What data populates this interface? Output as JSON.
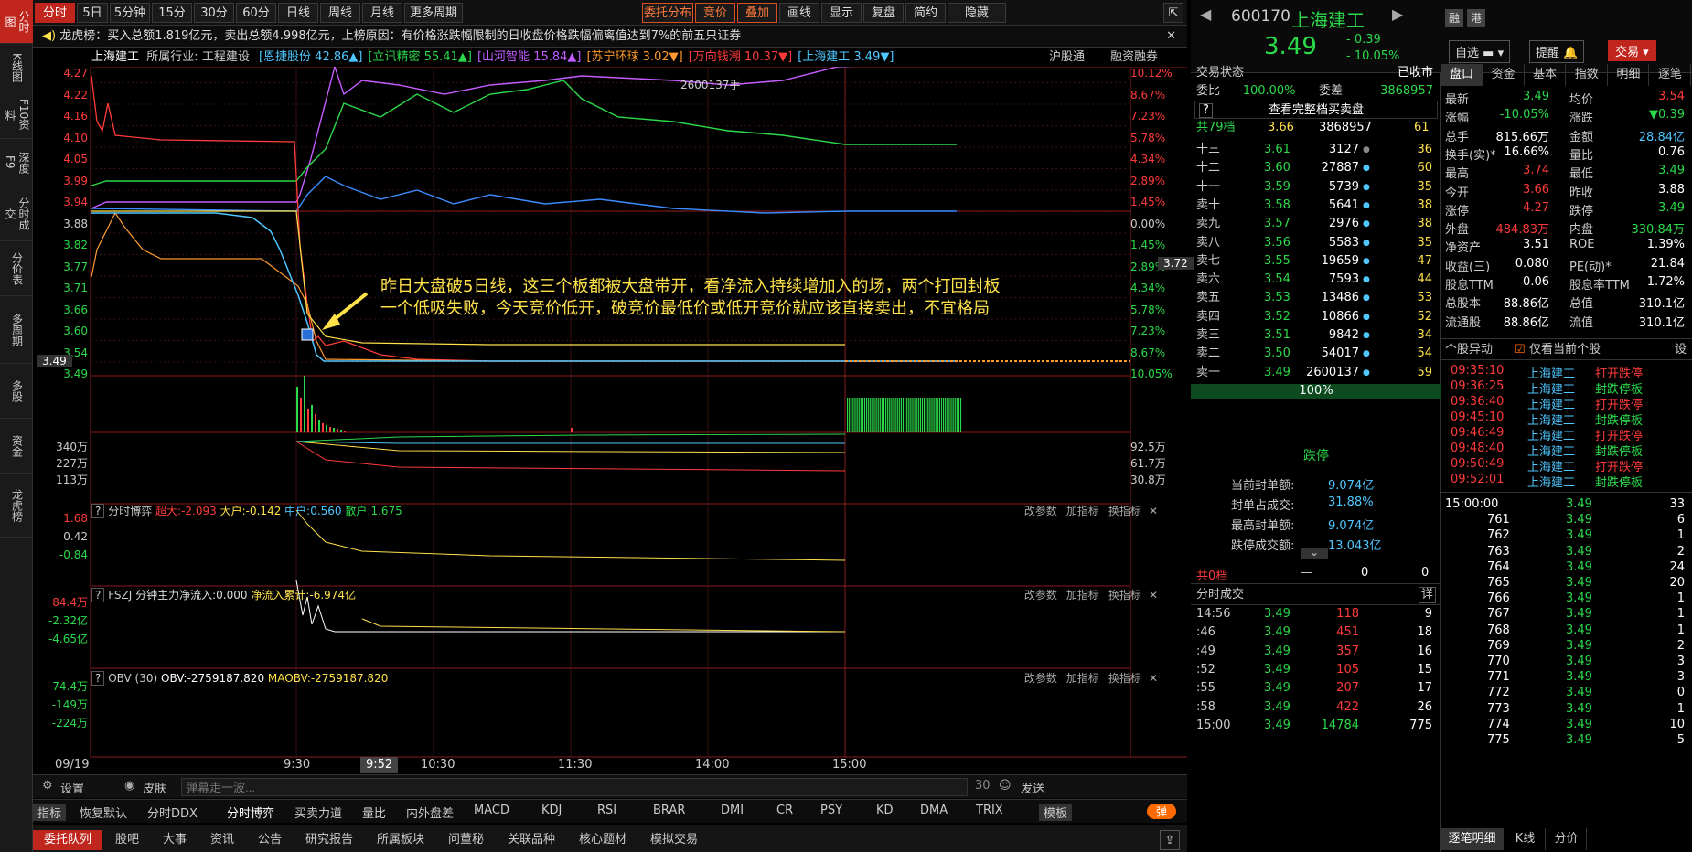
{
  "colors": {
    "up": "#ff3b3b",
    "down": "#2bd94a",
    "accent": "#c0261d",
    "highlight": "#ffe14a"
  },
  "leftbar": [
    {
      "label": "分时图",
      "active": true
    },
    {
      "label": "K线图"
    },
    {
      "label": "F10资料"
    },
    {
      "label": "深度F9"
    },
    {
      "label": "分时成交"
    },
    {
      "label": "分价表"
    },
    {
      "label": "多周期"
    },
    {
      "label": "多股"
    },
    {
      "label": "资金"
    },
    {
      "label": "龙虎榜"
    }
  ],
  "toolbar": {
    "periods": [
      "分时",
      "5日",
      "5分钟",
      "15分钟",
      "30分钟",
      "60分钟",
      "日线",
      "周线",
      "月线",
      "更多周期"
    ],
    "right": [
      "委托分布",
      "竞价",
      "叠加",
      "画线",
      "显示",
      "复盘",
      "简约",
      "隐藏"
    ]
  },
  "notice": "龙虎榜：买入总额1.819亿元，卖出总额4.998亿元，上榜原因：有价格涨跌幅限制的日收盘价格跌幅偏离值达到7%的前五只证券",
  "stockbar": {
    "name": "上海建工",
    "industry_label": "所属行业:",
    "industry": "工程建设",
    "peers": [
      {
        "text": "[恩捷股份 42.86▲]",
        "color": "#4fc7ff"
      },
      {
        "text": "[立讯精密 55.41▲]",
        "color": "#2bd94a"
      },
      {
        "text": "[山河智能 15.84▲]",
        "color": "#c45cff"
      },
      {
        "text": "[苏宁环球 3.02▼]",
        "color": "#ff9a2e"
      },
      {
        "text": "[万向钱潮 10.37▼]",
        "color": "#ff3b3b"
      },
      {
        "text": "[上海建工 3.49▼]",
        "color": "#4fc7ff"
      }
    ],
    "r1": "沪股通",
    "r2": "融资融券"
  },
  "price_axis": {
    "left": [
      "4.27",
      "4.22",
      "4.16",
      "4.10",
      "4.05",
      "3.99",
      "3.94",
      "3.88",
      "3.82",
      "3.77",
      "3.71",
      "3.66",
      "3.60",
      "3.54",
      "3.49"
    ],
    "right": [
      "10.12%",
      "8.67%",
      "7.23%",
      "5.78%",
      "4.34%",
      "2.89%",
      "1.45%",
      "0.00%",
      "1.45%",
      "2.89%",
      "4.34%",
      "5.78%",
      "7.23%",
      "8.67%",
      "10.05%"
    ],
    "cur_right": "3.72",
    "cur_left": "3.49",
    "max_note": "2600137手"
  },
  "annotation": {
    "line1": "昨日大盘破5日线，这三个板都被大盘带开，看净流入持续增加入的场，两个打回封板",
    "line2": "一个低吸失败，今天竞价低开，破竞价最低价或低开竞价就应该直接卖出，不宜格局"
  },
  "vol_axis": {
    "left": [
      "340万",
      "227万",
      "113万"
    ],
    "right": [
      "92.5万",
      "61.7万",
      "30.8万"
    ]
  },
  "indicator1": {
    "q": "?",
    "name": "分时博弈",
    "a": "超大:-2.093",
    "b": "大户:-0.142",
    "c": "中户:0.560",
    "d": "散户:1.675",
    "axis": [
      "1.68",
      "0.42",
      "-0.84"
    ]
  },
  "indicator2": {
    "q": "?",
    "name": "FSZJ",
    "a": "分钟主力净流入:0.000",
    "b": "净流入累计:-6.974亿",
    "axis": [
      "84.4万",
      "-2.32亿",
      "-4.65亿"
    ]
  },
  "indicator3": {
    "q": "?",
    "name": "OBV (30)",
    "a": "OBV:-2759187.820",
    "b": "MAOBV:-2759187.820",
    "axis": [
      "-74.4万",
      "-149万",
      "-224万"
    ]
  },
  "ind_btns": [
    "改参数",
    "加指标",
    "换指标"
  ],
  "timeaxis": {
    "date": "09/19",
    "ticks": [
      "9:30",
      "9:52",
      "10:30",
      "11:30",
      "14:00",
      "15:00"
    ]
  },
  "bottom1": {
    "settings": "设置",
    "skin": "皮肤",
    "danmu_placeholder": "弹幕走一波...",
    "count": "30",
    "send": "发送"
  },
  "bottom2": {
    "items": [
      "指标",
      "恢复默认",
      "分时DDX",
      "分时博弈",
      "买卖力道",
      "量比",
      "内外盘差",
      "MACD",
      "KDJ",
      "RSI",
      "BRAR",
      "DMI",
      "CR",
      "PSY",
      "KD",
      "DMA",
      "TRIX",
      "模板"
    ],
    "toggle": "弹"
  },
  "bottom3": [
    "委托队列",
    "股吧",
    "大事",
    "资讯",
    "公告",
    "研究报告",
    "所属板块",
    "问董秘",
    "关联品种",
    "核心题材",
    "模拟交易"
  ],
  "header": {
    "code": "600170",
    "name": "上海建工",
    "price": "3.49",
    "chg": "- 0.39",
    "pct": "- 10.05%",
    "badge1": "融",
    "badge2": "港",
    "btn_self": "自选",
    "btn_alert": "提醒",
    "btn_trade": "交易"
  },
  "ob": {
    "status_label": "交易状态",
    "status": "已收市",
    "wb_label": "委比",
    "wb": "-100.00%",
    "wc_label": "委差",
    "wc": "-3868957",
    "full_btn": "查看完整档买卖盘",
    "total": "共79档",
    "total_p": "3.66",
    "total_v": "3868957",
    "total_n": "61",
    "asks": [
      [
        "十三",
        "3.61",
        "3127",
        "36"
      ],
      [
        "十二",
        "3.60",
        "27887",
        "60"
      ],
      [
        "十一",
        "3.59",
        "5739",
        "35"
      ],
      [
        "卖十",
        "3.58",
        "5641",
        "38"
      ],
      [
        "卖九",
        "3.57",
        "2976",
        "38"
      ],
      [
        "卖八",
        "3.56",
        "5583",
        "35"
      ],
      [
        "卖七",
        "3.55",
        "19659",
        "47"
      ],
      [
        "卖六",
        "3.54",
        "7593",
        "44"
      ],
      [
        "卖五",
        "3.53",
        "13486",
        "53"
      ],
      [
        "卖四",
        "3.52",
        "10866",
        "52"
      ],
      [
        "卖三",
        "3.51",
        "9842",
        "34"
      ],
      [
        "卖二",
        "3.50",
        "54017",
        "54"
      ],
      [
        "卖一",
        "3.49",
        "2600137",
        "59"
      ]
    ],
    "pct": "100%",
    "limit_title": "跌停",
    "limit_rows": [
      [
        "当前封单额:",
        "9.074亿"
      ],
      [
        "封单占成交:",
        "31.88%"
      ],
      [
        "最高封单额:",
        "9.074亿"
      ],
      [
        "跌停成交额:",
        "13.043亿"
      ]
    ],
    "bid_total": "共0档",
    "bid_dash": "—",
    "bid_v": "0",
    "bid_n": "0",
    "trades_title": "分时成交",
    "trades_more": "详",
    "trades": [
      [
        "14:56",
        "3.49",
        "118",
        "9"
      ],
      [
        ":46",
        "3.49",
        "451",
        "18"
      ],
      [
        ":49",
        "3.49",
        "357",
        "16"
      ],
      [
        ":52",
        "3.49",
        "105",
        "15"
      ],
      [
        ":55",
        "3.49",
        "207",
        "17"
      ],
      [
        ":58",
        "3.49",
        "422",
        "26"
      ],
      [
        "15:00",
        "3.49",
        "14784",
        "775"
      ]
    ]
  },
  "rp": {
    "tabs": [
      "盘口",
      "资金",
      "基本",
      "指数",
      "明细",
      "逐笔"
    ],
    "stats": [
      [
        "最新",
        "3.49",
        "均价",
        "3.54"
      ],
      [
        "涨幅",
        "-10.05%",
        "涨跌",
        "▼0.39"
      ],
      [
        "总手",
        "815.66万",
        "金额",
        "28.84亿"
      ],
      [
        "换手(实)*",
        "16.66%",
        "量比",
        "0.76"
      ],
      [
        "最高",
        "3.74",
        "最低",
        "3.49"
      ],
      [
        "今开",
        "3.66",
        "昨收",
        "3.88"
      ],
      [
        "涨停",
        "4.27",
        "跌停",
        "3.49"
      ],
      [
        "外盘",
        "484.83万",
        "内盘",
        "330.84万"
      ],
      [
        "净资产",
        "3.51",
        "ROE",
        "1.39%"
      ],
      [
        "收益(三)",
        "0.080",
        "PE(动)*",
        "21.84"
      ],
      [
        "股息TTM",
        "0.06",
        "股息率TTM",
        "1.72%"
      ],
      [
        "总股本",
        "88.86亿",
        "总值",
        "310.1亿"
      ],
      [
        "流通股",
        "88.86亿",
        "流值",
        "310.1亿"
      ]
    ],
    "alerts_title": "个股异动",
    "alerts_check": "仅看当前个股",
    "alerts_btn": "设",
    "alerts": [
      [
        "09:35:10",
        "上海建工",
        "打开跌停"
      ],
      [
        "09:36:25",
        "上海建工",
        "封跌停板"
      ],
      [
        "09:36:40",
        "上海建工",
        "打开跌停"
      ],
      [
        "09:45:10",
        "上海建工",
        "封跌停板"
      ],
      [
        "09:46:49",
        "上海建工",
        "打开跌停"
      ],
      [
        "09:48:40",
        "上海建工",
        "封跌停板"
      ],
      [
        "09:50:49",
        "上海建工",
        "打开跌停"
      ],
      [
        "09:52:01",
        "上海建工",
        "封跌停板"
      ]
    ],
    "ticks": [
      [
        "15:00:00",
        "3.49",
        "33"
      ],
      [
        "761",
        "3.49",
        "6"
      ],
      [
        "762",
        "3.49",
        "1"
      ],
      [
        "763",
        "3.49",
        "2"
      ],
      [
        "764",
        "3.49",
        "24"
      ],
      [
        "765",
        "3.49",
        "20"
      ],
      [
        "766",
        "3.49",
        "1"
      ],
      [
        "767",
        "3.49",
        "1"
      ],
      [
        "768",
        "3.49",
        "1"
      ],
      [
        "769",
        "3.49",
        "2"
      ],
      [
        "770",
        "3.49",
        "3"
      ],
      [
        "771",
        "3.49",
        "3"
      ],
      [
        "772",
        "3.49",
        "0"
      ],
      [
        "773",
        "3.49",
        "1"
      ],
      [
        "774",
        "3.49",
        "10"
      ],
      [
        "775",
        "3.49",
        "5"
      ]
    ],
    "btabs": [
      "逐笔明细",
      "K线",
      "分价"
    ]
  }
}
